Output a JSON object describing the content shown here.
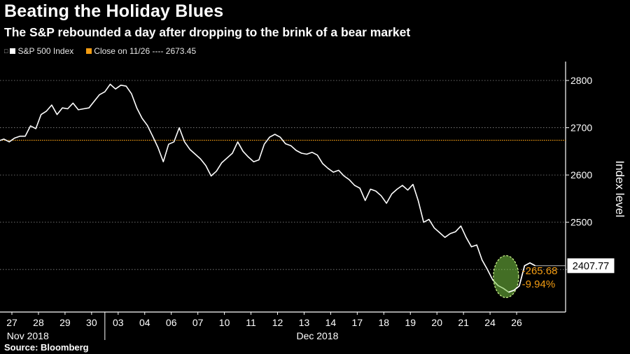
{
  "title": "Beating the Holiday Blues",
  "subtitle": "The S&P rebounded a day after dropping to the brink of a bear market",
  "legend": {
    "prefix": "□",
    "series_label": "S&P 500 Index",
    "reference_label": "Close on 11/26 ---- 2673.45"
  },
  "source": "Source: Bloomberg",
  "chart_data": {
    "type": "line",
    "title": "Beating the Holiday Blues",
    "subtitle": "The S&P rebounded a day after dropping to the brink of a bear market",
    "ylabel": "Index level",
    "ylim": [
      2310,
      2840
    ],
    "y_ticks": [
      2800,
      2700,
      2600,
      2500,
      2400
    ],
    "y_tick_labels": [
      "2800",
      "2700",
      "2600",
      "2500",
      ""
    ],
    "x_ticks": [
      "27",
      "28",
      "29",
      "30",
      "03",
      "04",
      "06",
      "07",
      "10",
      "11",
      "12",
      "13",
      "14",
      "17",
      "18",
      "19",
      "20",
      "21",
      "24",
      "26"
    ],
    "x_groups": [
      {
        "label": "Nov 2018",
        "from": 0,
        "to": 3
      },
      {
        "label": "Dec 2018",
        "from": 4,
        "to": 19
      }
    ],
    "grid": true,
    "series": [
      {
        "name": "S&P 500 Index",
        "color": "#ffffff",
        "x": [
          -0.5,
          -0.3,
          -0.1,
          0.1,
          0.3,
          0.5,
          0.7,
          0.9,
          1.1,
          1.3,
          1.5,
          1.7,
          1.9,
          2.1,
          2.3,
          2.5,
          2.7,
          2.9,
          3.1,
          3.3,
          3.5,
          3.7,
          3.9,
          4.1,
          4.3,
          4.5,
          4.7,
          4.9,
          5.1,
          5.3,
          5.5,
          5.7,
          5.9,
          6.1,
          6.3,
          6.5,
          6.7,
          6.9,
          7.1,
          7.3,
          7.5,
          7.7,
          7.9,
          8.1,
          8.3,
          8.5,
          8.7,
          8.9,
          9.1,
          9.3,
          9.5,
          9.7,
          9.9,
          10.1,
          10.3,
          10.5,
          10.7,
          10.9,
          11.1,
          11.3,
          11.5,
          11.7,
          11.9,
          12.1,
          12.3,
          12.5,
          12.7,
          12.9,
          13.1,
          13.3,
          13.5,
          13.7,
          13.9,
          14.1,
          14.3,
          14.5,
          14.7,
          14.9,
          15.1,
          15.3,
          15.5,
          15.7,
          15.9,
          16.1,
          16.3,
          16.5,
          16.7,
          16.9,
          17.1,
          17.3,
          17.5,
          17.7,
          17.9,
          18.1,
          18.3,
          18.5,
          18.7,
          18.9,
          19.1,
          19.3,
          19.5,
          19.7
        ],
        "y": [
          2672,
          2676,
          2670,
          2678,
          2682,
          2682,
          2704,
          2698,
          2728,
          2735,
          2748,
          2728,
          2742,
          2740,
          2752,
          2738,
          2740,
          2742,
          2756,
          2770,
          2776,
          2792,
          2782,
          2790,
          2788,
          2772,
          2742,
          2720,
          2705,
          2682,
          2658,
          2628,
          2665,
          2670,
          2700,
          2670,
          2654,
          2644,
          2634,
          2620,
          2598,
          2608,
          2626,
          2636,
          2646,
          2670,
          2650,
          2638,
          2628,
          2632,
          2665,
          2680,
          2686,
          2680,
          2666,
          2662,
          2652,
          2646,
          2644,
          2648,
          2642,
          2624,
          2614,
          2606,
          2610,
          2598,
          2590,
          2578,
          2572,
          2546,
          2570,
          2566,
          2556,
          2540,
          2560,
          2570,
          2578,
          2568,
          2580,
          2545,
          2500,
          2506,
          2488,
          2478,
          2468,
          2476,
          2480,
          2492,
          2468,
          2448,
          2452,
          2420,
          2400,
          2378,
          2366,
          2360,
          2352,
          2356,
          2365,
          2408,
          2414,
          2408
        ]
      }
    ],
    "reference_line": {
      "label": "Close on 11/26",
      "value": 2673.45,
      "color": "#f39c12"
    },
    "current_value_label": "2407.77",
    "annotations": [
      {
        "text": "-265.68",
        "color": "#f39c12"
      },
      {
        "text": "-9.94%",
        "color": "#f39c12"
      }
    ],
    "highlight_color": "#7ac943"
  }
}
